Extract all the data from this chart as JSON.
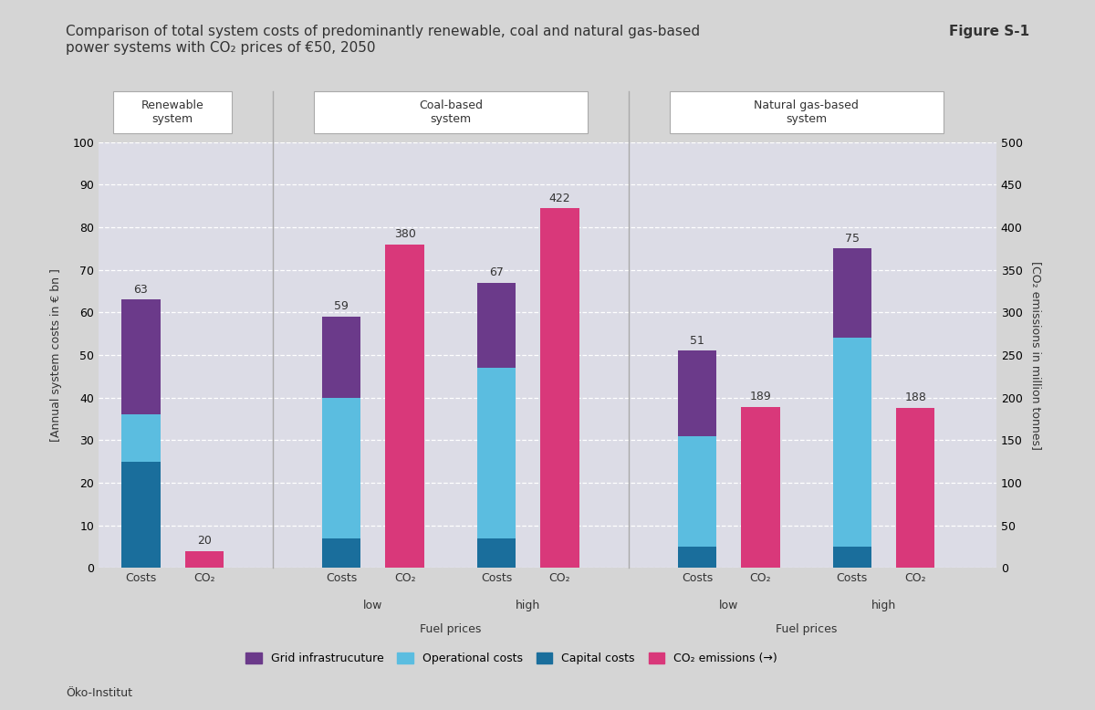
{
  "title": "Comparison of total system costs of predominantly renewable, coal and natural gas-based\npower systems with CO₂ prices of €50, 2050",
  "figure_label": "Figure S-1",
  "ylabel_left": "[Annual system costs in € bn ]",
  "ylabel_right": "[CO₂ emissions in million tonnes]",
  "source": "Öko-Institut",
  "groups": [
    {
      "label": "Renewable\nsystem",
      "bars": [
        {
          "name": "Costs",
          "capital": 25,
          "operational": 11,
          "grid": 27,
          "total": 63
        },
        {
          "name": "CO₂",
          "co2_val": 20
        }
      ]
    },
    {
      "label": "Coal-based\nsystem",
      "subgroups": [
        {
          "sublabel": "low",
          "bars": [
            {
              "name": "Costs",
              "capital": 7,
              "operational": 33,
              "grid": 19,
              "total": 59
            },
            {
              "name": "CO₂",
              "co2_val": 380
            }
          ]
        },
        {
          "sublabel": "high",
          "bars": [
            {
              "name": "Costs",
              "capital": 7,
              "operational": 40,
              "grid": 20,
              "total": 67
            },
            {
              "name": "CO₂",
              "co2_val": 422
            }
          ]
        }
      ]
    },
    {
      "label": "Natural gas-based\nsystem",
      "subgroups": [
        {
          "sublabel": "low",
          "bars": [
            {
              "name": "Costs",
              "capital": 5,
              "operational": 26,
              "grid": 20,
              "total": 51
            },
            {
              "name": "CO₂",
              "co2_val": 189
            }
          ]
        },
        {
          "sublabel": "high",
          "bars": [
            {
              "name": "Costs",
              "capital": 5,
              "operational": 49,
              "grid": 21,
              "total": 75
            },
            {
              "name": "CO₂",
              "co2_val": 188
            }
          ]
        }
      ]
    }
  ],
  "colors": {
    "grid_infra": "#6B3A8A",
    "operational": "#5BBDE0",
    "capital": "#1A6E9C",
    "co2_emissions": "#D9387A",
    "background_outer": "#D5D5D5",
    "background_plot": "#DCDCE6",
    "divider": "#AAAAAA",
    "text_dark": "#333333",
    "white": "#FFFFFF"
  },
  "ylim_left": [
    0,
    100
  ],
  "ylim_right": [
    0,
    500
  ],
  "yticks_left": [
    0,
    10,
    20,
    30,
    40,
    50,
    60,
    70,
    80,
    90,
    100
  ],
  "yticks_right": [
    0,
    50,
    100,
    150,
    200,
    250,
    300,
    350,
    400,
    450,
    500
  ],
  "legend_items": [
    {
      "label": "Grid infrastrucuture",
      "color": "#6B3A8A"
    },
    {
      "label": "Operational costs",
      "color": "#5BBDE0"
    },
    {
      "label": "Capital costs",
      "color": "#1A6E9C"
    },
    {
      "label": "CO₂ emissions (→)",
      "color": "#D9387A"
    }
  ],
  "co2_scale": 5.0,
  "bar_width": 0.55
}
